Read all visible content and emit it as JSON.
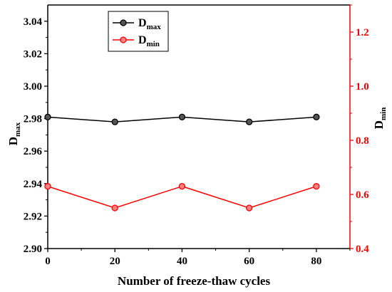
{
  "chart_data": {
    "type": "line",
    "title": "",
    "xlabel": "Number of freeze-thaw cycles",
    "ylabel_left": {
      "main": "D",
      "sub": "max"
    },
    "ylabel_right": {
      "main": "D",
      "sub": "min"
    },
    "x": [
      0,
      20,
      40,
      60,
      80
    ],
    "xlim": [
      0,
      90
    ],
    "xticks": [
      "0",
      "20",
      "40",
      "60",
      "80"
    ],
    "ylim_left": [
      2.9,
      3.05
    ],
    "yticks_left": [
      "2.90",
      "2.92",
      "2.94",
      "2.96",
      "2.98",
      "3.00",
      "3.02",
      "3.04"
    ],
    "ylim_right": [
      0.4,
      1.3
    ],
    "yticks_right": [
      "0.4",
      "0.6",
      "0.8",
      "1.0",
      "1.2"
    ],
    "grid": false,
    "legend_position": "top-left",
    "series": [
      {
        "name": {
          "main": "D",
          "sub": "max"
        },
        "axis": "left",
        "color": "#000000",
        "marker_fill": "#555555",
        "values": [
          2.981,
          2.978,
          2.981,
          2.978,
          2.981
        ]
      },
      {
        "name": {
          "main": "D",
          "sub": "min"
        },
        "axis": "right",
        "color": "#ff0000",
        "marker_fill": "#ff8080",
        "values": [
          0.63,
          0.55,
          0.63,
          0.55,
          0.63
        ]
      }
    ],
    "right_axis_color": "#ff0000"
  }
}
